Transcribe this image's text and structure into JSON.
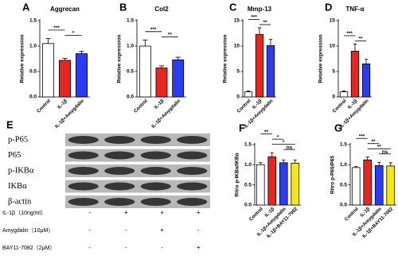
{
  "chart_data": [
    {
      "type": "bar",
      "panel": "A",
      "title": "Aggrecan",
      "y_label": "Relative expression",
      "categories": [
        "Control",
        "IL-1β",
        "IL-1β+Amygdalin"
      ],
      "colors": [
        "#ffffff",
        "#e8261f",
        "#2b3cf0"
      ],
      "values": [
        1.05,
        0.72,
        0.85
      ],
      "errors": [
        0.1,
        0.04,
        0.05
      ],
      "ylim": [
        0,
        1.5
      ],
      "yticks": [
        {
          "value": 0,
          "label": "0.0"
        },
        0.5,
        {
          "value": 1,
          "label": "1.0"
        },
        1.5
      ],
      "significance": [
        {
          "pair": [
            0,
            1
          ],
          "label": "***"
        },
        {
          "pair": [
            1,
            2
          ],
          "label": "*"
        }
      ]
    },
    {
      "type": "bar",
      "panel": "B",
      "title": "Col2",
      "y_label": "Relative expression",
      "categories": [
        "Control",
        "IL-1β",
        "IL-1β+Amygdalin"
      ],
      "colors": [
        "#ffffff",
        "#e8261f",
        "#2b3cf0"
      ],
      "values": [
        1.0,
        0.57,
        0.73
      ],
      "errors": [
        0.12,
        0.04,
        0.05
      ],
      "ylim": [
        0,
        1.5
      ],
      "yticks": [
        {
          "value": 0,
          "label": "0.0"
        },
        0.5,
        {
          "value": 1,
          "label": "1.0"
        },
        1.5
      ],
      "significance": [
        {
          "pair": [
            0,
            1
          ],
          "label": "***"
        },
        {
          "pair": [
            1,
            2
          ],
          "label": "**"
        }
      ]
    },
    {
      "type": "bar",
      "panel": "C",
      "title": "Mmp-13",
      "y_label": "Relative expression",
      "categories": [
        "Control",
        "IL-1β",
        "IL-1β+Amygdalin"
      ],
      "colors": [
        "#ffffff",
        "#e8261f",
        "#2b3cf0"
      ],
      "values": [
        1.0,
        12.3,
        10.1
      ],
      "errors": [
        0.2,
        1.3,
        1.2
      ],
      "ylim": [
        0,
        15
      ],
      "yticks": [
        0,
        5,
        10,
        15
      ],
      "significance": [
        {
          "pair": [
            0,
            1
          ],
          "label": "***"
        },
        {
          "pair": [
            1,
            2
          ],
          "label": "**"
        }
      ]
    },
    {
      "type": "bar",
      "panel": "D",
      "title": "TNF-α",
      "y_label": "Relative expression",
      "categories": [
        "Control",
        "IL-1β",
        "IL-1β+Amygdalin"
      ],
      "colors": [
        "#ffffff",
        "#e8261f",
        "#2b3cf0"
      ],
      "values": [
        1.0,
        9.0,
        6.5
      ],
      "errors": [
        0.2,
        1.4,
        0.9
      ],
      "ylim": [
        0,
        15
      ],
      "yticks": [
        0,
        5,
        10,
        15
      ],
      "significance": [
        {
          "pair": [
            0,
            1
          ],
          "label": "***"
        },
        {
          "pair": [
            1,
            2
          ],
          "label": "**"
        }
      ]
    },
    {
      "type": "bar",
      "panel": "F",
      "y_label": "Ritro p-IKBα/IKBα",
      "categories": [
        "Control",
        "IL-1β",
        "IL-1β+Amygdalin",
        "IL-1β+BAY11-7082"
      ],
      "colors": [
        "#ffffff",
        "#e8261f",
        "#2b3cf0",
        "#f5e615"
      ],
      "values": [
        1.0,
        1.2,
        1.05,
        1.04
      ],
      "errors": [
        0.05,
        0.1,
        0.07,
        0.08
      ],
      "ylim": [
        0,
        1.5
      ],
      "yticks": [
        {
          "value": 0,
          "label": "0.0"
        },
        0.5,
        {
          "value": 1,
          "label": "1.0"
        },
        1.5
      ],
      "significance": [
        {
          "pair": [
            0,
            1
          ],
          "label": "**"
        },
        {
          "pair": [
            1,
            2
          ],
          "label": "*"
        },
        {
          "pair": [
            1,
            3
          ],
          "label": "*"
        },
        {
          "pair": [
            2,
            3
          ],
          "label": "ns"
        }
      ]
    },
    {
      "type": "bar",
      "panel": "G",
      "y_label": "Ritro p-P65/P65",
      "categories": [
        "Control",
        "IL-1β",
        "IL-1β+Amygdalin",
        "IL-1β+BAY11-7082"
      ],
      "colors": [
        "#ffffff",
        "#e8261f",
        "#2b3cf0",
        "#f5e615"
      ],
      "values": [
        0.93,
        1.12,
        0.98,
        0.97
      ],
      "errors": [
        0.03,
        0.07,
        0.08,
        0.08
      ],
      "ylim": [
        0,
        1.5
      ],
      "yticks": [
        {
          "value": 0,
          "label": "0.0"
        },
        0.5,
        {
          "value": 1,
          "label": "1.0"
        },
        1.5
      ],
      "significance": [
        {
          "pair": [
            0,
            1
          ],
          "label": "***"
        },
        {
          "pair": [
            1,
            2
          ],
          "label": "**"
        },
        {
          "pair": [
            1,
            3
          ],
          "label": "**"
        },
        {
          "pair": [
            2,
            3
          ],
          "label": "ns"
        }
      ]
    }
  ],
  "blot": {
    "panel": "E",
    "bands": [
      "p-P65",
      "P65",
      "p-IKBα",
      "IKBα",
      "β-actin"
    ],
    "treatments": [
      {
        "label": "IL-1β（10ng/ml）",
        "marks": [
          "-",
          "+",
          "+",
          "+"
        ]
      },
      {
        "label": "Amygdalin（10μM）",
        "marks": [
          "-",
          "-",
          "+",
          "-"
        ]
      },
      {
        "label": "BAY11-7082（2μM）",
        "marks": [
          "-",
          "-",
          "-",
          "+"
        ]
      }
    ]
  }
}
